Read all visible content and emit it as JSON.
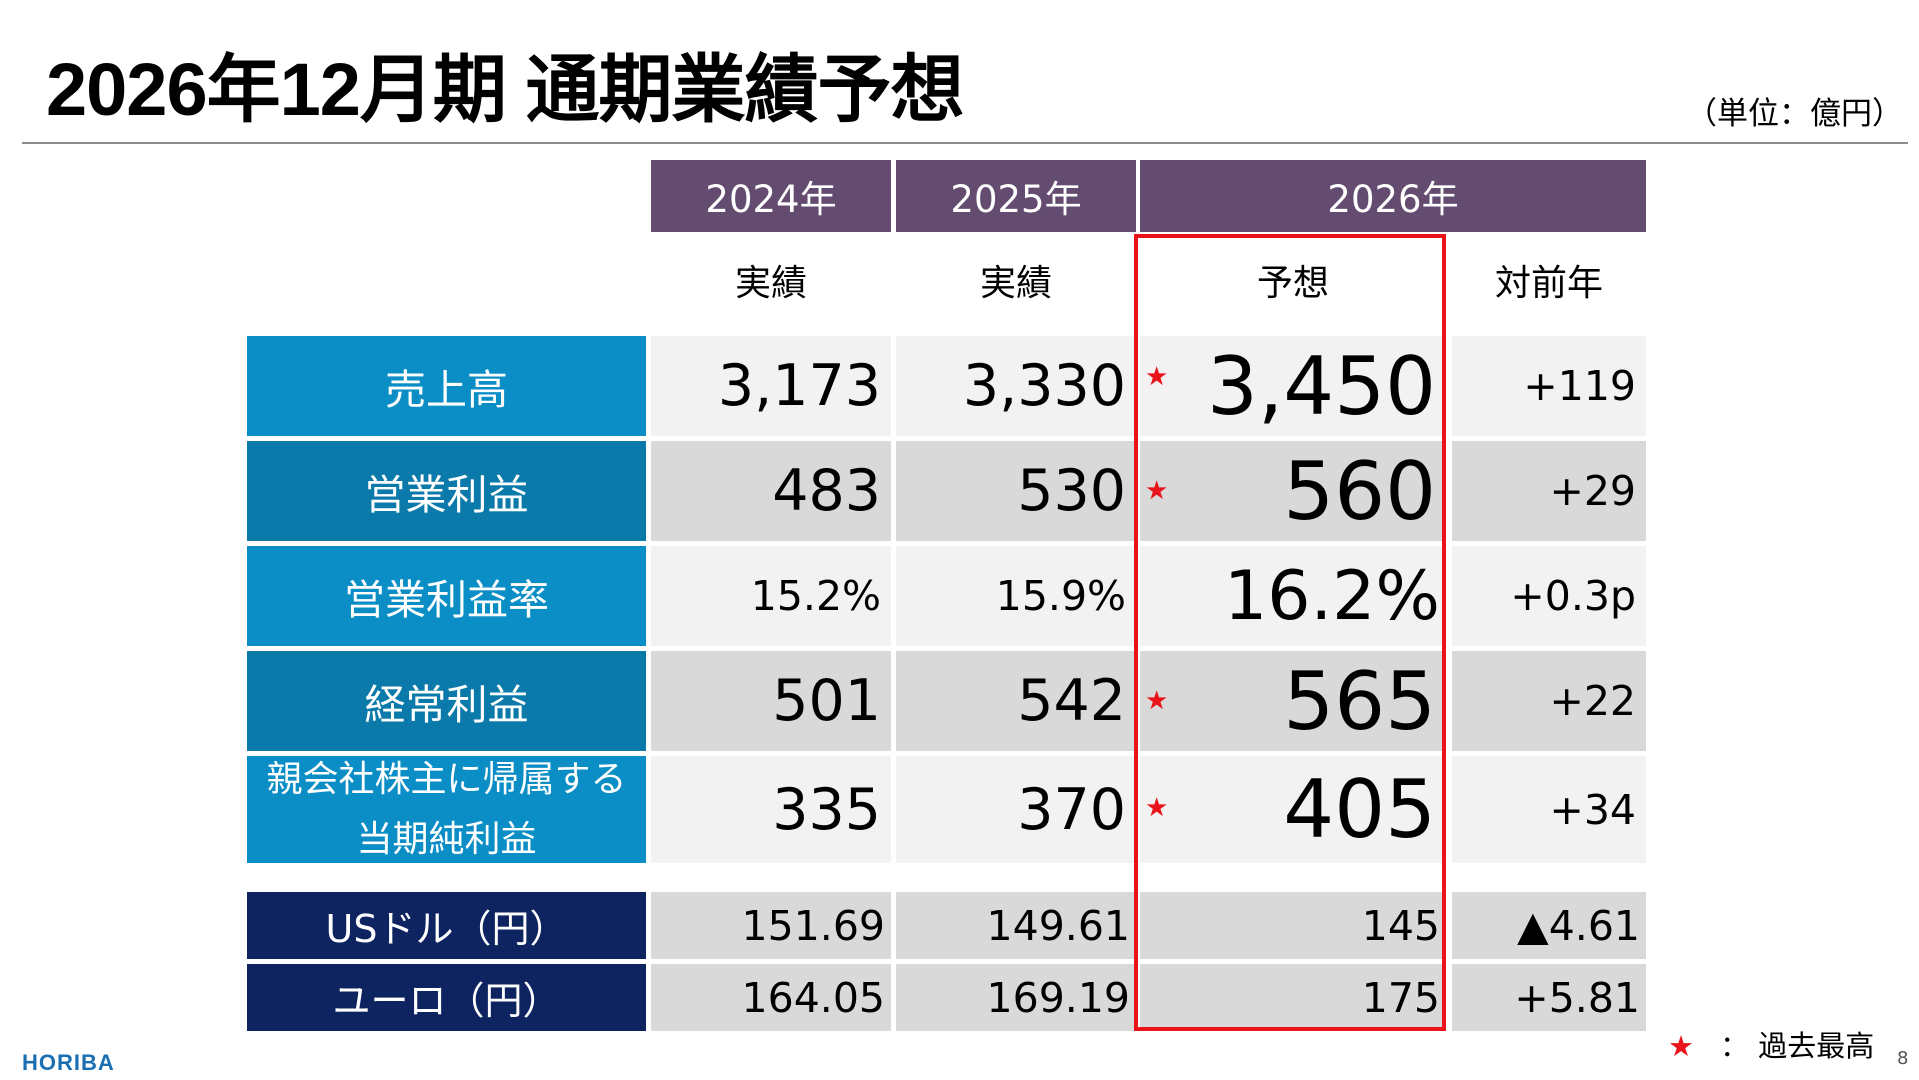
{
  "slide": {
    "title": "2026年12月期 通期業績予想",
    "unit": "（単位：億円）",
    "logo": "HORIBA",
    "page_number": "8",
    "accent_red": "#e8141a",
    "header_purple": "#634c6f"
  },
  "table": {
    "years": [
      "2024年",
      "2025年",
      "2026年"
    ],
    "sub_headers": [
      "実績",
      "実績",
      "予想",
      "対前年"
    ],
    "rows": [
      {
        "label": "売上高",
        "v2024": "3,173",
        "v2025": "3,330",
        "v2026": "3,450",
        "yoy": "+119",
        "record": true
      },
      {
        "label": "営業利益",
        "v2024": "483",
        "v2025": "530",
        "v2026": "560",
        "yoy": "+29",
        "record": true
      },
      {
        "label": "営業利益率",
        "v2024": "15.2%",
        "v2025": "15.9%",
        "v2026": "16.2%",
        "yoy": "+0.3p",
        "record": false
      },
      {
        "label": "経常利益",
        "v2024": "501",
        "v2025": "542",
        "v2026": "565",
        "yoy": "+22",
        "record": true
      },
      {
        "label_line1": "親会社株主に帰属する",
        "label_line2": "当期純利益",
        "v2024": "335",
        "v2025": "370",
        "v2026": "405",
        "yoy": "+34",
        "record": true
      }
    ],
    "fx_rows": [
      {
        "label": "USドル（円）",
        "v2024": "151.69",
        "v2025": "149.61",
        "v2026": "145",
        "yoy": "▲4.61"
      },
      {
        "label": "ユーロ（円）",
        "v2024": "164.05",
        "v2025": "169.19",
        "v2026": "175",
        "yoy": "+5.81"
      }
    ],
    "star_symbol": "★"
  },
  "legend": {
    "star": "★",
    "text": "：  過去最高"
  }
}
